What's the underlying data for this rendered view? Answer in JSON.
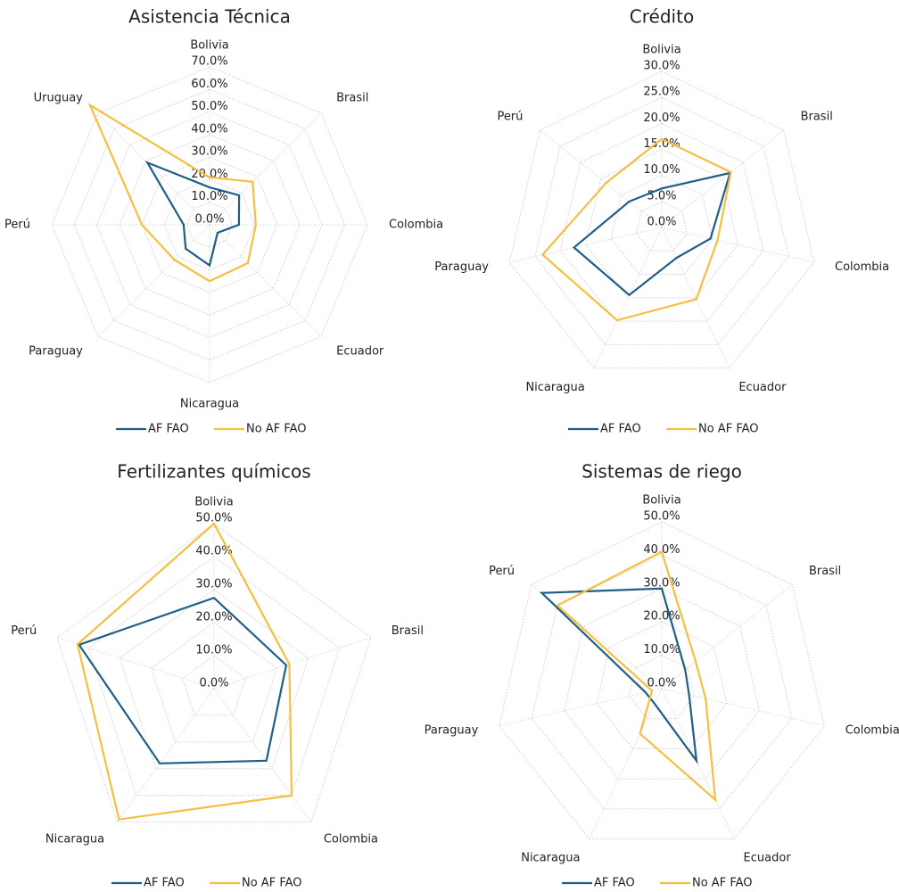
{
  "chart_data": [
    {
      "type": "radar",
      "title": "Asistencia Técnica",
      "categories": [
        "Bolivia",
        "Brasil",
        "Colombia",
        "Ecuador",
        "Nicaragua",
        "Paraguay",
        "Perú",
        "Uruguay"
      ],
      "series": [
        {
          "name": "AF FAO",
          "color": "#1d5f86",
          "values": [
            16.6,
            18.5,
            13,
            5,
            18,
            15,
            11.5,
            39
          ]
        },
        {
          "name": "No AF FAO",
          "color": "#f5bf42",
          "values": [
            21,
            27,
            20.5,
            24,
            25,
            22,
            30,
            75
          ]
        }
      ],
      "ylim": [
        0,
        70
      ],
      "yticks": [
        {
          "value": 0,
          "label": "0.0%"
        },
        {
          "value": 10,
          "label": "10.0%"
        },
        {
          "value": 20,
          "label": "20.0%"
        },
        {
          "value": 30,
          "label": "30.0%"
        },
        {
          "value": 40,
          "label": "40.0%"
        },
        {
          "value": 50,
          "label": "50.0%"
        },
        {
          "value": 60,
          "label": "60.0%"
        },
        {
          "value": 70,
          "label": "70.0%"
        }
      ],
      "grid": true
    },
    {
      "type": "radar",
      "title": "Crédito",
      "categories": [
        "Bolivia",
        "Brasil",
        "Colombia",
        "Ecuador",
        "Nicaragua",
        "Paraguay",
        "Perú"
      ],
      "series": [
        {
          "name": "AF FAO",
          "color": "#1d5f86",
          "values": [
            7.5,
            16.8,
            9.6,
            6.5,
            14.4,
            17.3,
            8
          ]
        },
        {
          "name": "No AF FAO",
          "color": "#f5bf42",
          "values": [
            17,
            17,
            11,
            15.3,
            19.8,
            23.5,
            13.7
          ]
        }
      ],
      "ylim": [
        0,
        30
      ],
      "yticks": [
        {
          "value": 0,
          "label": "0.0%"
        },
        {
          "value": 5,
          "label": "5.0%"
        },
        {
          "value": 10,
          "label": "10.0%"
        },
        {
          "value": 15,
          "label": "15.0%"
        },
        {
          "value": 20,
          "label": "20.0%"
        },
        {
          "value": 25,
          "label": "25.0%"
        },
        {
          "value": 30,
          "label": "30.0%"
        }
      ],
      "grid": true
    },
    {
      "type": "radar",
      "title": "Fertilizantes químicos",
      "categories": [
        "Bolivia",
        "Brasil",
        "Colombia",
        "Nicaragua",
        "Perú"
      ],
      "series": [
        {
          "name": "AF FAO",
          "color": "#1d5f86",
          "values": [
            27.5,
            23,
            27,
            28,
            43
          ]
        },
        {
          "name": "No AF FAO",
          "color": "#f5bf42",
          "values": [
            50,
            24,
            40,
            49,
            43.5
          ]
        }
      ],
      "ylim": [
        0,
        50
      ],
      "yticks": [
        {
          "value": 0,
          "label": "0.0%"
        },
        {
          "value": 10,
          "label": "10.0%"
        },
        {
          "value": 20,
          "label": "20.0%"
        },
        {
          "value": 30,
          "label": "30.0%"
        },
        {
          "value": 40,
          "label": "40.0%"
        },
        {
          "value": 50,
          "label": "50.0%"
        }
      ],
      "grid": true
    },
    {
      "type": "radar",
      "title": "Sistemas de riego",
      "categories": [
        "Bolivia",
        "Brasil",
        "Colombia",
        "Ecuador",
        "Nicaragua",
        "Paraguay",
        "Perú"
      ],
      "series": [
        {
          "name": "AF FAO",
          "color": "#1d5f86",
          "values": [
            30,
            9,
            8.4,
            24,
            5,
            5,
            46
          ]
        },
        {
          "name": "No AF FAO",
          "color": "#f5bf42",
          "values": [
            41,
            13,
            13.5,
            37,
            15,
            3,
            40
          ]
        }
      ],
      "ylim": [
        0,
        50
      ],
      "yticks": [
        {
          "value": 0,
          "label": "0.0%"
        },
        {
          "value": 10,
          "label": "10.0%"
        },
        {
          "value": 20,
          "label": "20.0%"
        },
        {
          "value": 30,
          "label": "30.0%"
        },
        {
          "value": 40,
          "label": "40.0%"
        },
        {
          "value": 50,
          "label": "50.0%"
        }
      ],
      "grid": true
    }
  ]
}
